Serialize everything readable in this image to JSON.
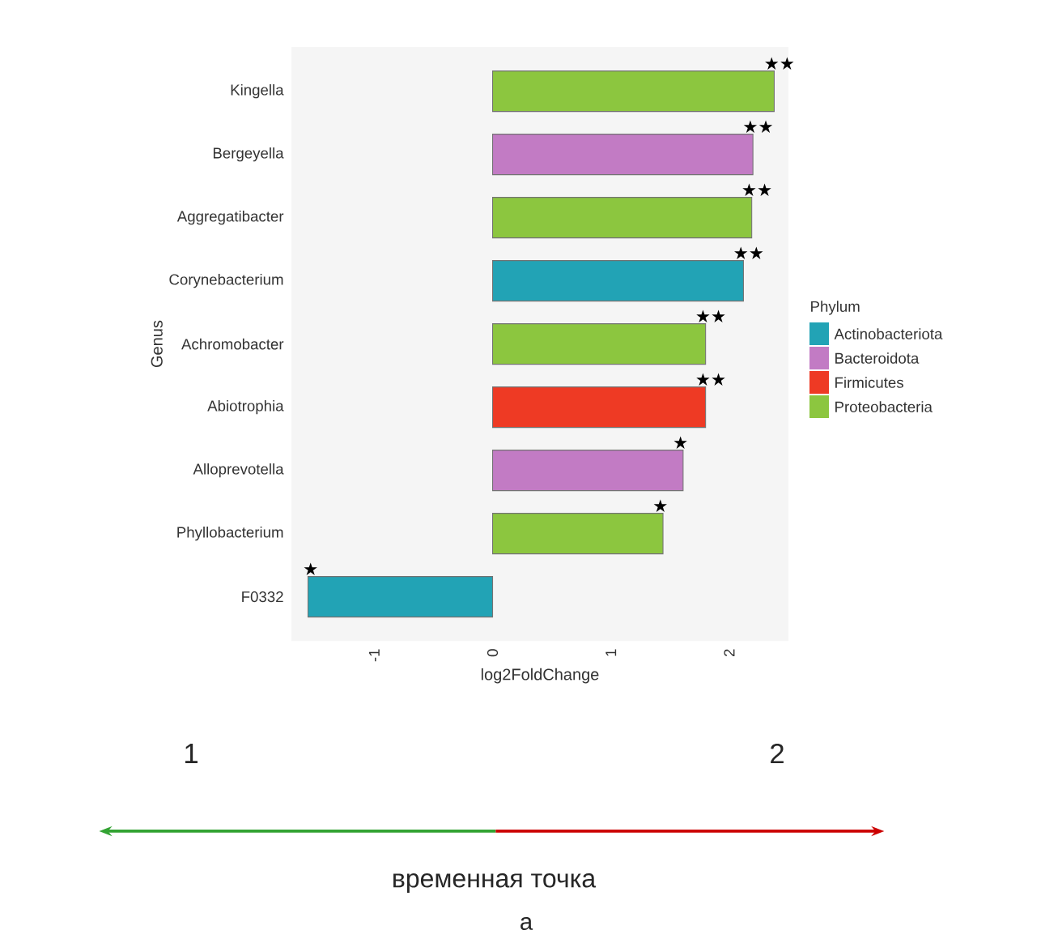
{
  "chart_data": {
    "type": "bar",
    "orientation": "horizontal",
    "xlabel": "log2FoldChange",
    "ylabel": "Genus",
    "legend_title": "Phylum",
    "legend": "right",
    "categories": [
      "Kingella",
      "Bergeyella",
      "Aggregatibacter",
      "Corynebacterium",
      "Achromobacter",
      "Abiotrophia",
      "Alloprevotella",
      "Phyllobacterium",
      "F0332"
    ],
    "series": [
      {
        "name": "Actinobacteriota",
        "color": "#22a3b5",
        "values": [
          null,
          null,
          null,
          2.12,
          null,
          null,
          null,
          null,
          -1.56
        ]
      },
      {
        "name": "Bacteroidota",
        "color": "#c27bc4",
        "values": [
          null,
          2.2,
          null,
          null,
          null,
          null,
          1.61,
          null,
          null
        ]
      },
      {
        "name": "Firmicutes",
        "color": "#ee3a24",
        "values": [
          null,
          null,
          null,
          null,
          null,
          1.8,
          null,
          null,
          null
        ]
      },
      {
        "name": "Proteobacteria",
        "color": "#8cc63f",
        "values": [
          2.38,
          null,
          2.19,
          null,
          1.8,
          null,
          null,
          1.44,
          null
        ]
      }
    ],
    "xlim": [
      -1.7,
      2.5
    ],
    "xticks": [
      -1,
      0,
      1,
      2
    ],
    "annotations": [
      {
        "text": "★★",
        "x": 2.38,
        "y": "Kingella"
      },
      {
        "text": "★★",
        "x": 2.2,
        "y": "Bergeyella"
      },
      {
        "text": "★★",
        "x": 2.19,
        "y": "Aggregatibacter"
      },
      {
        "text": "★★",
        "x": 2.12,
        "y": "Corynebacterium"
      },
      {
        "text": "★★",
        "x": 1.8,
        "y": "Achromobacter"
      },
      {
        "text": "★★",
        "x": 1.8,
        "y": "Abiotrophia"
      },
      {
        "text": "★",
        "x": 1.61,
        "y": "Alloprevotella"
      },
      {
        "text": "★",
        "x": 1.44,
        "y": "Phyllobacterium"
      },
      {
        "text": "★",
        "x": -1.56,
        "y": "F0332"
      },
      "1",
      "2",
      "временная точка",
      "а"
    ]
  }
}
